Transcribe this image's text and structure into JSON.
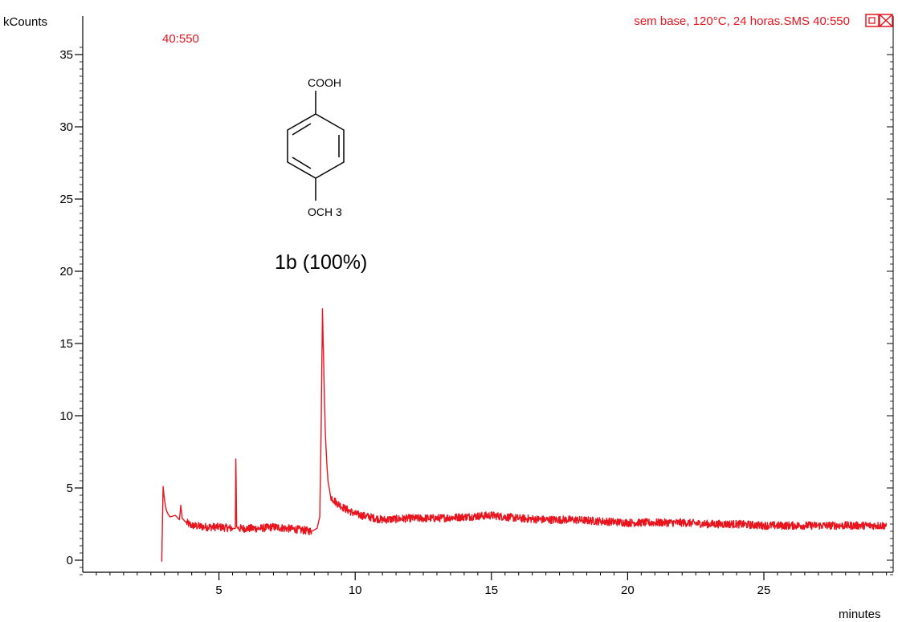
{
  "chart_data": {
    "type": "line",
    "title": "sem base, 120°C, 24 horas.SMS 40:550",
    "trace_label": "40:550",
    "xlabel": "minutes",
    "ylabel": "kCounts",
    "xlim": [
      0,
      29.5
    ],
    "ylim": [
      -1.8,
      36
    ],
    "x_ticks": [
      5,
      10,
      15,
      20,
      25
    ],
    "x_tick_labels": [
      "5",
      "10",
      "15",
      "20",
      "25"
    ],
    "y_ticks": [
      0,
      5,
      10,
      15,
      20,
      25,
      30,
      35
    ],
    "y_tick_labels": [
      "0",
      "5",
      "10",
      "15",
      "20",
      "25",
      "30",
      "35"
    ],
    "grid": false,
    "legend": "none",
    "series_color": "#e8141e",
    "series": [
      {
        "x": [
          2.9,
          2.95,
          3.0,
          3.05,
          3.1,
          3.2,
          3.4,
          3.55,
          3.6,
          3.65,
          3.8,
          4.0,
          4.5,
          5.0,
          5.5,
          5.6,
          5.62,
          5.65,
          5.7,
          6.0,
          6.5,
          7.0,
          7.5,
          8.0,
          8.4,
          8.6,
          8.7,
          8.75,
          8.8,
          8.85,
          8.9,
          8.95,
          9.0,
          9.1,
          9.3,
          9.6,
          10.0,
          10.5,
          11.0,
          12.0,
          13.0,
          14.0,
          15.0,
          16.0,
          17.0,
          18.0,
          19.0,
          20.0,
          21.0,
          22.0,
          23.0,
          24.0,
          25.0,
          26.0,
          27.0,
          28.0,
          29.0,
          29.5
        ],
        "y": [
          -0.1,
          5.1,
          4.2,
          3.6,
          3.3,
          3.0,
          3.1,
          2.8,
          3.8,
          2.9,
          2.6,
          2.4,
          2.3,
          2.3,
          2.2,
          2.2,
          7.0,
          2.3,
          2.2,
          2.2,
          2.2,
          2.3,
          2.2,
          2.1,
          2.0,
          2.2,
          3.0,
          9.0,
          17.4,
          13.0,
          9.0,
          7.0,
          5.5,
          4.4,
          4.0,
          3.6,
          3.2,
          3.0,
          2.8,
          2.9,
          2.9,
          3.0,
          3.1,
          2.9,
          2.8,
          2.8,
          2.7,
          2.6,
          2.6,
          2.6,
          2.5,
          2.5,
          2.4,
          2.4,
          2.4,
          2.4,
          2.4,
          2.4
        ]
      }
    ],
    "annotations": {
      "structure_top_group": "COOH",
      "structure_bottom_group": "OCH 3",
      "compound_label": "1b (100%)"
    }
  }
}
